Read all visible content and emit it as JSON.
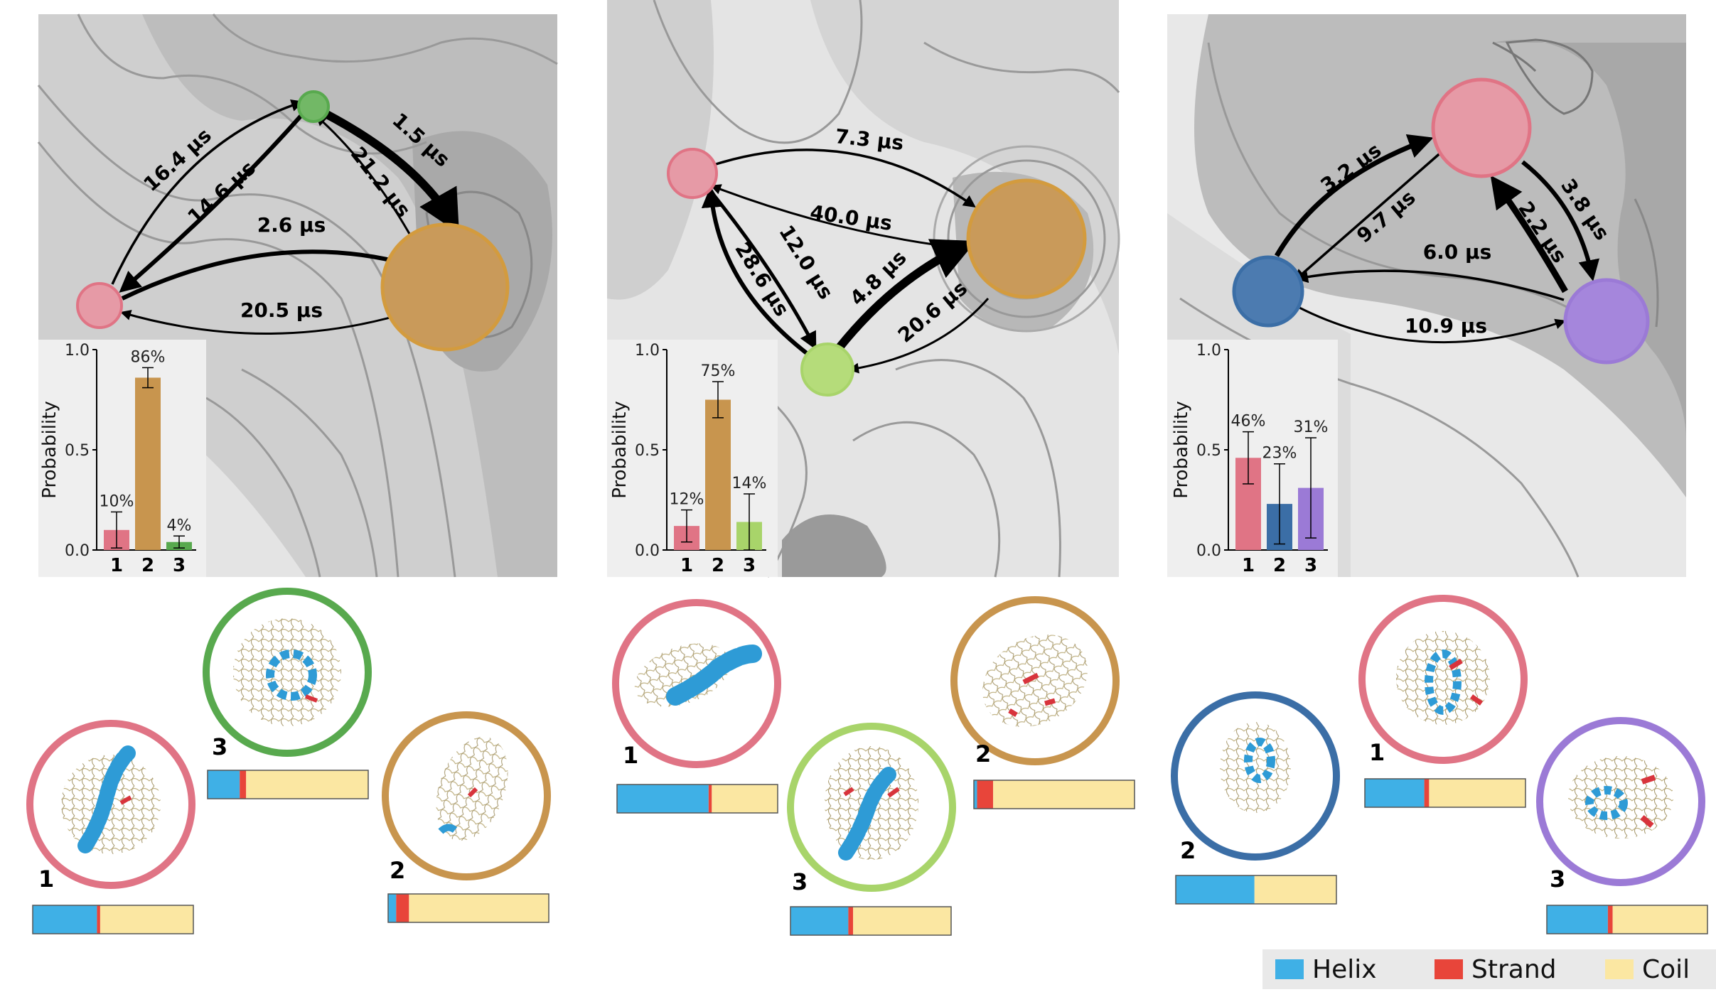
{
  "colors": {
    "pink": "#e07485",
    "pink_fill": "#e69aa6",
    "gold": "#c8954e",
    "gold_fill": "#c99a5a",
    "green_dark": "#58a94e",
    "green_light": "#a8d46a",
    "blue": "#3b6ea6",
    "purple": "#9b7ad6",
    "helix": "#3fb0e6",
    "strand": "#e8453a",
    "coil": "#fbe7a2"
  },
  "panels": [
    {
      "edges": [
        {
          "label": "16.4 µs"
        },
        {
          "label": "14.6 µs"
        },
        {
          "label": "1.5 µs"
        },
        {
          "label": "21.2 µs"
        },
        {
          "label": "2.6 µs"
        },
        {
          "label": "20.5 µs"
        }
      ],
      "chart": {
        "ylabel": "Probability",
        "yticks": [
          "0.0",
          "0.5",
          "1.0"
        ],
        "categories": [
          "1",
          "2",
          "3"
        ],
        "bars": [
          {
            "value": 0.1,
            "err": 0.09,
            "label": "10%",
            "color": "pink"
          },
          {
            "value": 0.86,
            "err": 0.05,
            "label": "86%",
            "color": "gold"
          },
          {
            "value": 0.04,
            "err": 0.03,
            "label": "4%",
            "color": "green_dark"
          }
        ]
      },
      "structures": [
        {
          "label": "1",
          "ring": "pink",
          "ss": {
            "helix": 0.4,
            "strand": 0.02,
            "coil": 0.58
          }
        },
        {
          "label": "2",
          "ring": "gold",
          "ss": {
            "helix": 0.05,
            "strand": 0.08,
            "coil": 0.87
          }
        },
        {
          "label": "3",
          "ring": "green_dark",
          "ss": {
            "helix": 0.2,
            "strand": 0.04,
            "coil": 0.76
          }
        }
      ]
    },
    {
      "edges": [
        {
          "label": "7.3 µs"
        },
        {
          "label": "40.0 µs"
        },
        {
          "label": "12.0 µs"
        },
        {
          "label": "28.6 µs"
        },
        {
          "label": "4.8 µs"
        },
        {
          "label": "20.6 µs"
        }
      ],
      "chart": {
        "ylabel": "Probability",
        "yticks": [
          "0.0",
          "0.5",
          "1.0"
        ],
        "categories": [
          "1",
          "2",
          "3"
        ],
        "bars": [
          {
            "value": 0.12,
            "err": 0.08,
            "label": "12%",
            "color": "pink"
          },
          {
            "value": 0.75,
            "err": 0.09,
            "label": "75%",
            "color": "gold"
          },
          {
            "value": 0.14,
            "err": 0.14,
            "label": "14%",
            "color": "green_light"
          }
        ]
      },
      "structures": [
        {
          "label": "1",
          "ring": "pink",
          "ss": {
            "helix": 0.57,
            "strand": 0.02,
            "coil": 0.41
          }
        },
        {
          "label": "2",
          "ring": "gold",
          "ss": {
            "helix": 0.02,
            "strand": 0.1,
            "coil": 0.88
          }
        },
        {
          "label": "3",
          "ring": "green_light",
          "ss": {
            "helix": 0.36,
            "strand": 0.03,
            "coil": 0.61
          }
        }
      ]
    },
    {
      "edges": [
        {
          "label": "3.2 µs"
        },
        {
          "label": "9.7 µs"
        },
        {
          "label": "3.8 µs"
        },
        {
          "label": "2.2 µs"
        },
        {
          "label": "6.0 µs"
        },
        {
          "label": "10.9 µs"
        }
      ],
      "chart": {
        "ylabel": "Probability",
        "yticks": [
          "0.0",
          "0.5",
          "1.0"
        ],
        "categories": [
          "1",
          "2",
          "3"
        ],
        "bars": [
          {
            "value": 0.46,
            "err": 0.13,
            "label": "46%",
            "color": "pink"
          },
          {
            "value": 0.23,
            "err": 0.2,
            "label": "23%",
            "color": "blue"
          },
          {
            "value": 0.31,
            "err": 0.25,
            "label": "31%",
            "color": "purple"
          }
        ]
      },
      "structures": [
        {
          "label": "1",
          "ring": "pink",
          "ss": {
            "helix": 0.37,
            "strand": 0.03,
            "coil": 0.6
          }
        },
        {
          "label": "2",
          "ring": "blue",
          "ss": {
            "helix": 0.49,
            "strand": 0.0,
            "coil": 0.51
          }
        },
        {
          "label": "3",
          "ring": "purple",
          "ss": {
            "helix": 0.38,
            "strand": 0.03,
            "coil": 0.59
          }
        }
      ]
    }
  ],
  "legend": {
    "helix": "Helix",
    "strand": "Strand",
    "coil": "Coil"
  }
}
